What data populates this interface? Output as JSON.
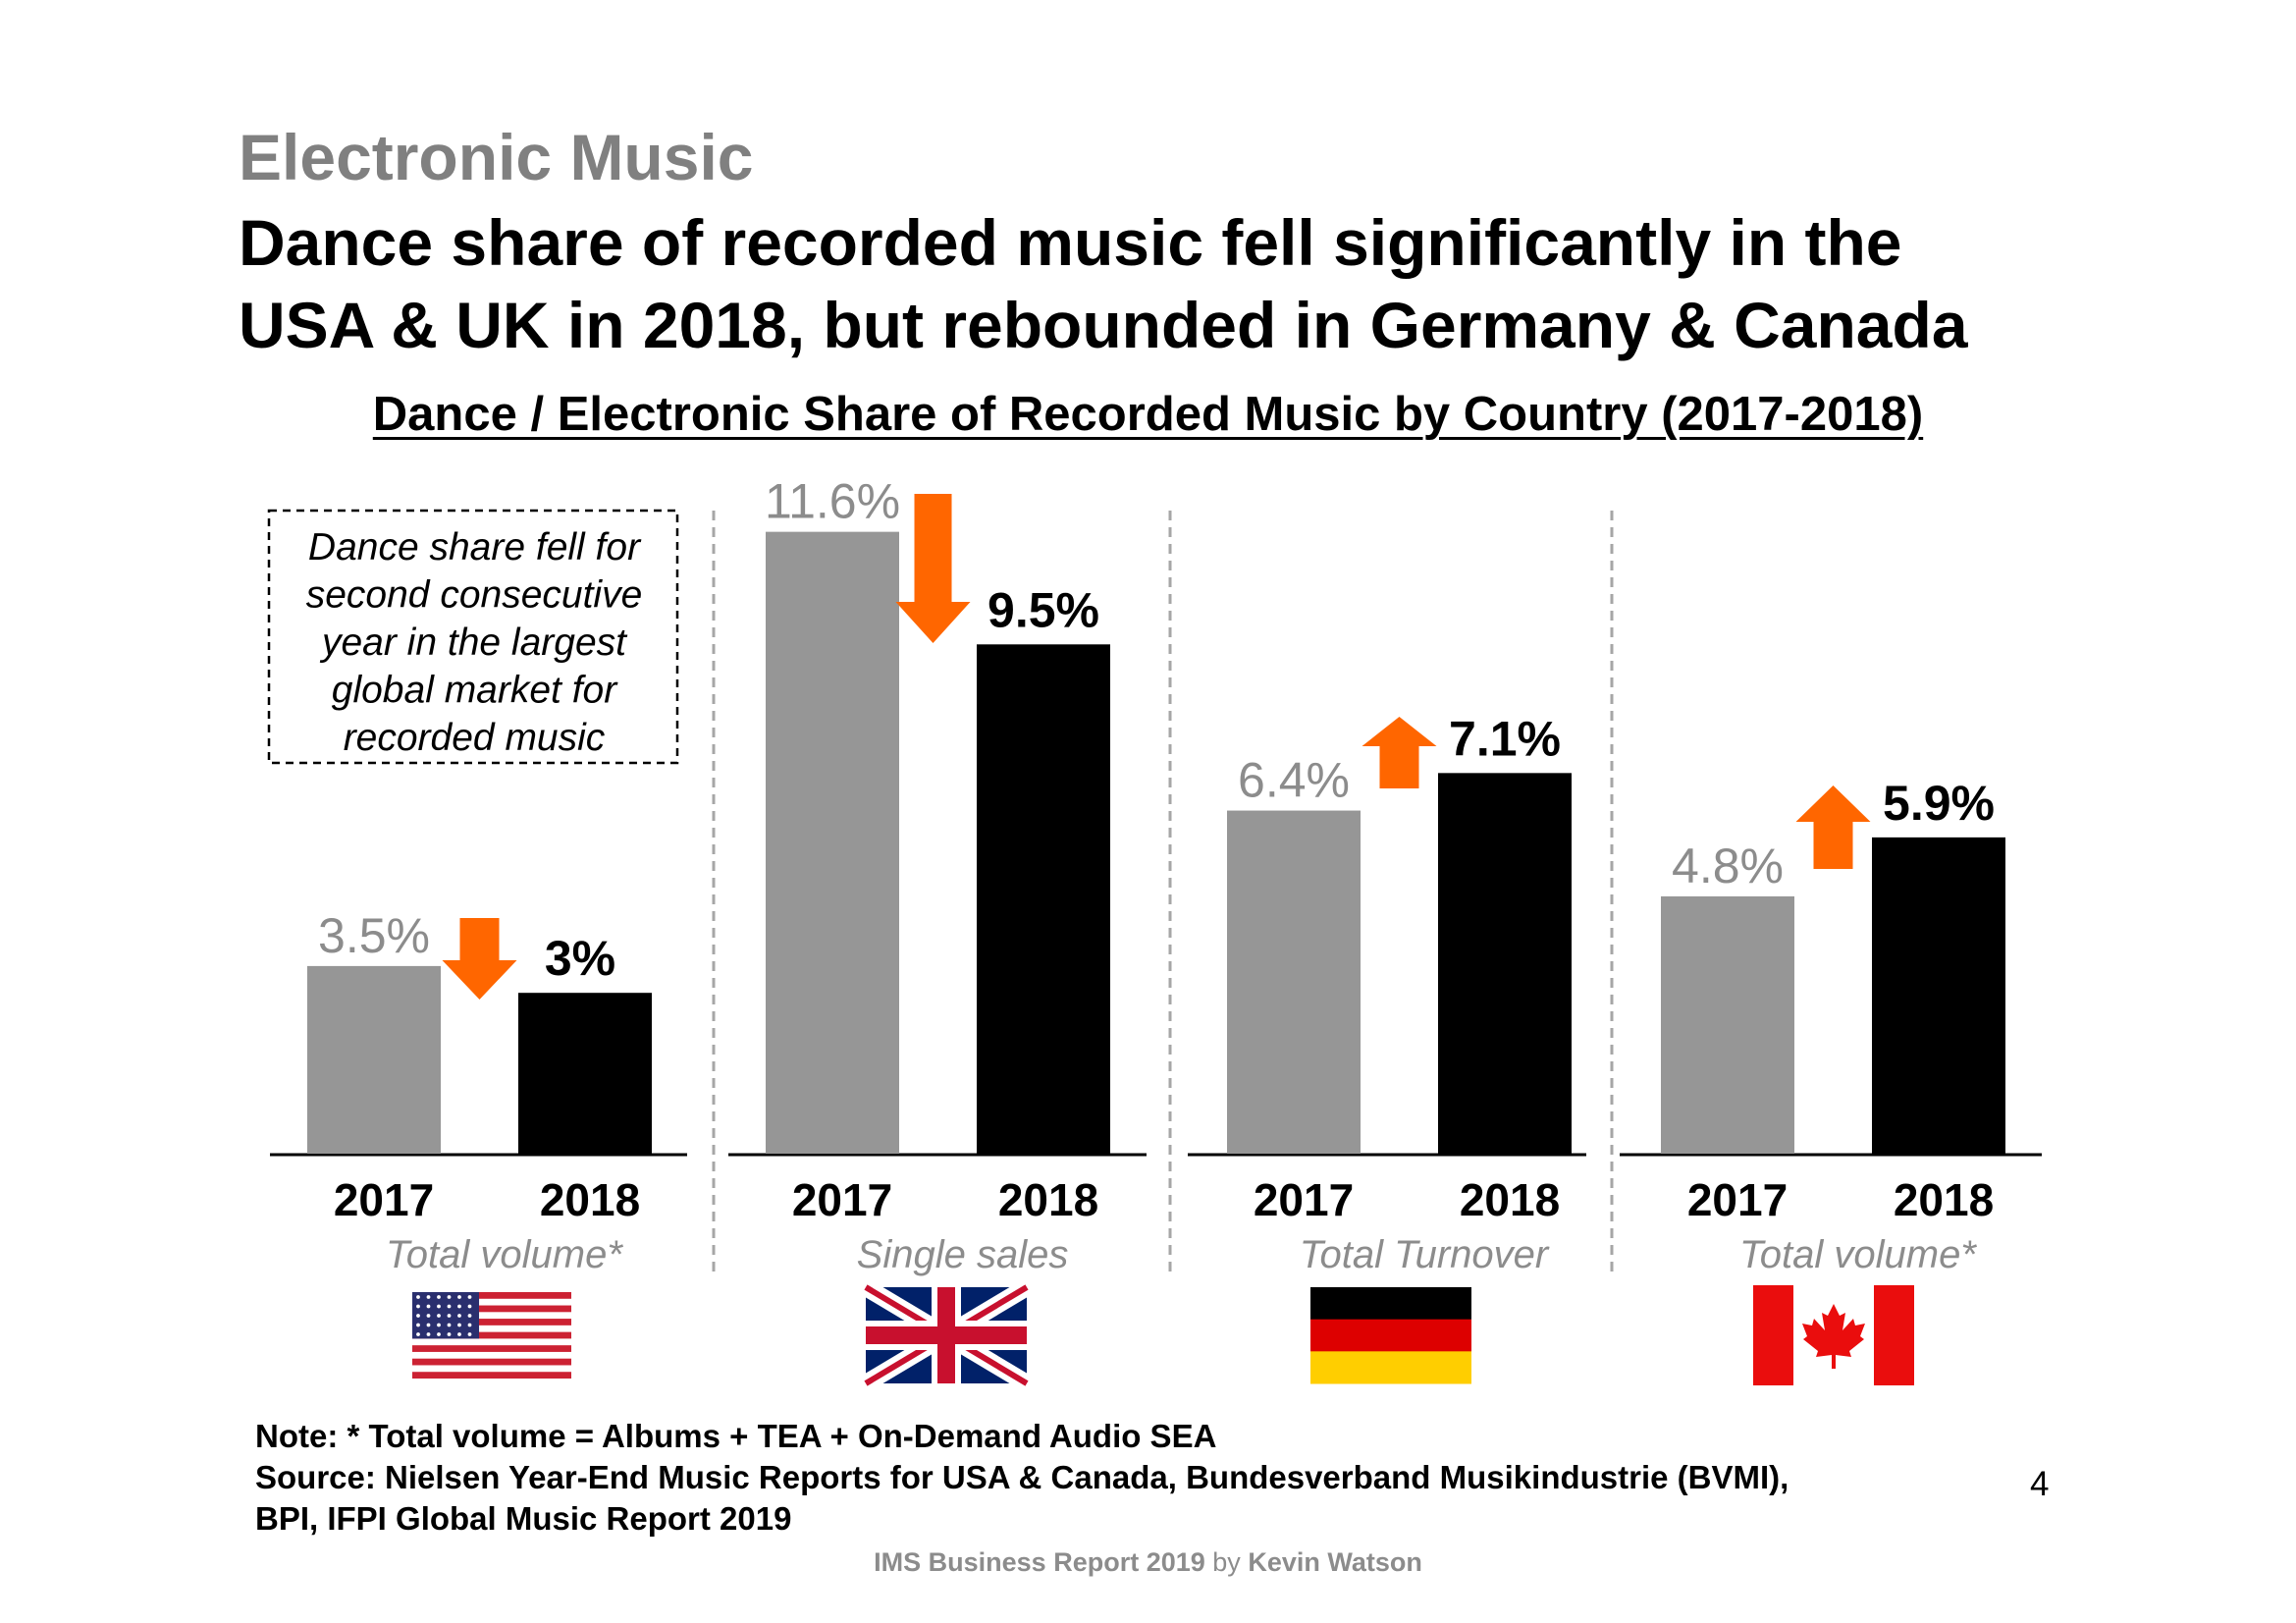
{
  "supertitle": "Electronic Music",
  "headline_line1": "Dance share of recorded music fell significantly in the",
  "headline_line2": "USA & UK in 2018, but rebounded in Germany & Canada",
  "callout_lines": [
    "Dance share fell for",
    "second consecutive",
    "year in the largest",
    "global market for",
    "recorded music"
  ],
  "note": "Note: * Total volume = Albums + TEA + On-Demand Audio SEA",
  "source_line1": "Source: Nielsen Year-End Music Reports for USA & Canada, Bundesverband Musikindustrie (BVMI),",
  "source_line2": "BPI, IFPI Global Music Report 2019",
  "page_number": "4",
  "footer": {
    "report": "IMS Business Report 2019",
    "by": "by",
    "author": "Kevin Watson"
  },
  "colors": {
    "bar_2017": "#969696",
    "bar_2018": "#000000",
    "arrow": "#ff6600",
    "label_2017": "#8c8c8c",
    "label_2018": "#000000"
  },
  "chart_data": {
    "type": "bar",
    "title": "Dance / Electronic Share of Recorded Music by Country (2017-2018)",
    "ylim": [
      0,
      12
    ],
    "series": [
      {
        "name": "2017",
        "values": [
          3.5,
          11.6,
          6.4,
          4.8
        ]
      },
      {
        "name": "2018",
        "values": [
          3.0,
          9.5,
          7.1,
          5.9
        ]
      }
    ],
    "groups": [
      {
        "country": "USA",
        "flag_icon": "usa-flag-icon",
        "years": [
          "2017",
          "2018"
        ],
        "labels": [
          "3.5%",
          "3%"
        ],
        "measure": "Total volume*",
        "trend": "down"
      },
      {
        "country": "UK",
        "flag_icon": "uk-flag-icon",
        "years": [
          "2017",
          "2018"
        ],
        "labels": [
          "11.6%",
          "9.5%"
        ],
        "measure": "Single sales",
        "trend": "down"
      },
      {
        "country": "Germany",
        "flag_icon": "germany-flag-icon",
        "years": [
          "2017",
          "2018"
        ],
        "labels": [
          "6.4%",
          "7.1%"
        ],
        "measure": "Total Turnover",
        "trend": "up"
      },
      {
        "country": "Canada",
        "flag_icon": "canada-flag-icon",
        "years": [
          "2017",
          "2018"
        ],
        "labels": [
          "4.8%",
          "5.9%"
        ],
        "measure": "Total volume*",
        "trend": "up"
      }
    ],
    "grid": false,
    "legend": "none"
  }
}
